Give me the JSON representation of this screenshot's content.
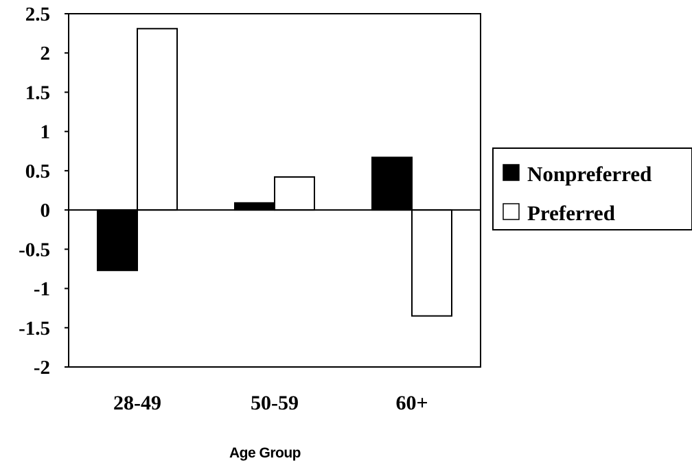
{
  "chart_data": {
    "type": "bar",
    "categories": [
      "28-49",
      "50-59",
      "60+"
    ],
    "series": [
      {
        "name": "Nonpreferred",
        "values": [
          -0.77,
          0.09,
          0.67
        ],
        "color": "#000000"
      },
      {
        "name": "Preferred",
        "values": [
          2.31,
          0.42,
          -1.35
        ],
        "color": "#ffffff"
      }
    ],
    "ylim": [
      -2,
      2.5
    ],
    "yticks": [
      "2.5",
      "2",
      "1.5",
      "1",
      "0.5",
      "0",
      "-0.5",
      "-1",
      "-1.5",
      "-2"
    ],
    "xlabel": "Age Group",
    "ylabel": "",
    "grid": false,
    "legend": "right"
  }
}
